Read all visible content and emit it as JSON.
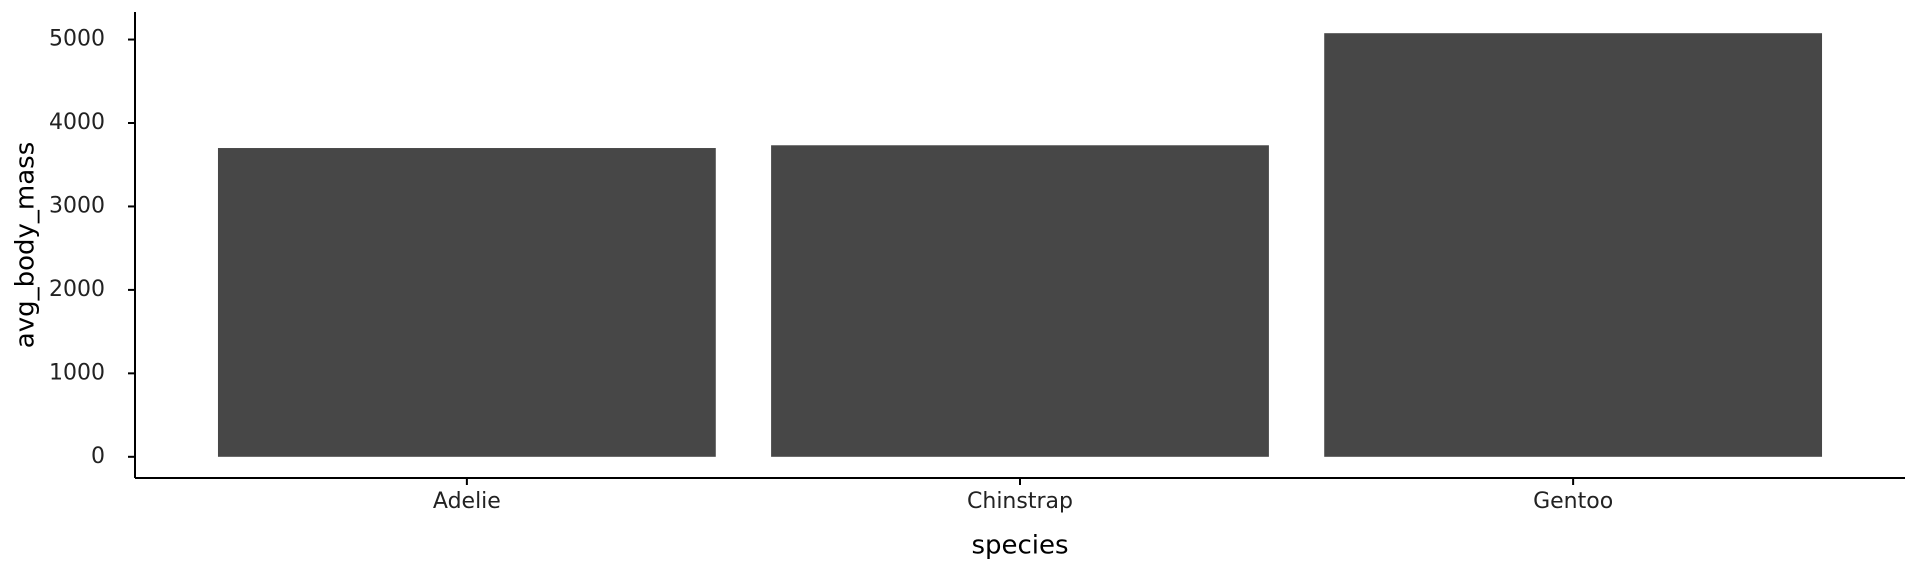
{
  "chart_data": {
    "type": "bar",
    "x_label": "species",
    "y_label": "avg_body_mass",
    "categories": [
      "Adelie",
      "Chinstrap",
      "Gentoo"
    ],
    "values": [
      3700,
      3733,
      5076
    ],
    "color": "#474747",
    "ylim": [
      -254,
      5330
    ],
    "yticks": [
      0,
      1000,
      2000,
      3000,
      4000,
      5000
    ],
    "grid": false
  }
}
